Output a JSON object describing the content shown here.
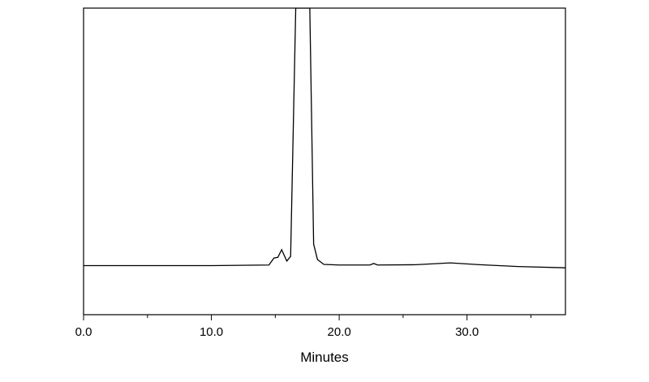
{
  "chart_data": {
    "type": "line",
    "x_label": "Minutes",
    "x": [
      0,
      5,
      10,
      14.5,
      14.9,
      15.2,
      15.5,
      15.9,
      16.2,
      16.6,
      17.7,
      18.0,
      18.3,
      18.8,
      20.0,
      22.4,
      22.7,
      23.0,
      26.0,
      28.7,
      31.0,
      34.0,
      37.7
    ],
    "series": [
      {
        "color": "#000000",
        "values": [
          16,
          16,
          16,
          16.2,
          18.5,
          18.7,
          21.2,
          17.5,
          19,
          100,
          100,
          23,
          18,
          16.4,
          16.2,
          16.2,
          16.7,
          16.2,
          16.3,
          16.9,
          16.3,
          15.7,
          15.3
        ]
      }
    ],
    "xlim": [
      0,
      37.7
    ],
    "ylim": [
      0,
      100
    ],
    "xticks": [
      {
        "value": 0,
        "label": "0.0"
      },
      {
        "value": 10,
        "label": "10.0"
      },
      {
        "value": 20,
        "label": "20.0"
      },
      {
        "value": 30,
        "label": "30.0"
      }
    ],
    "xminor_ticks": [
      5,
      15,
      25,
      35
    ]
  }
}
